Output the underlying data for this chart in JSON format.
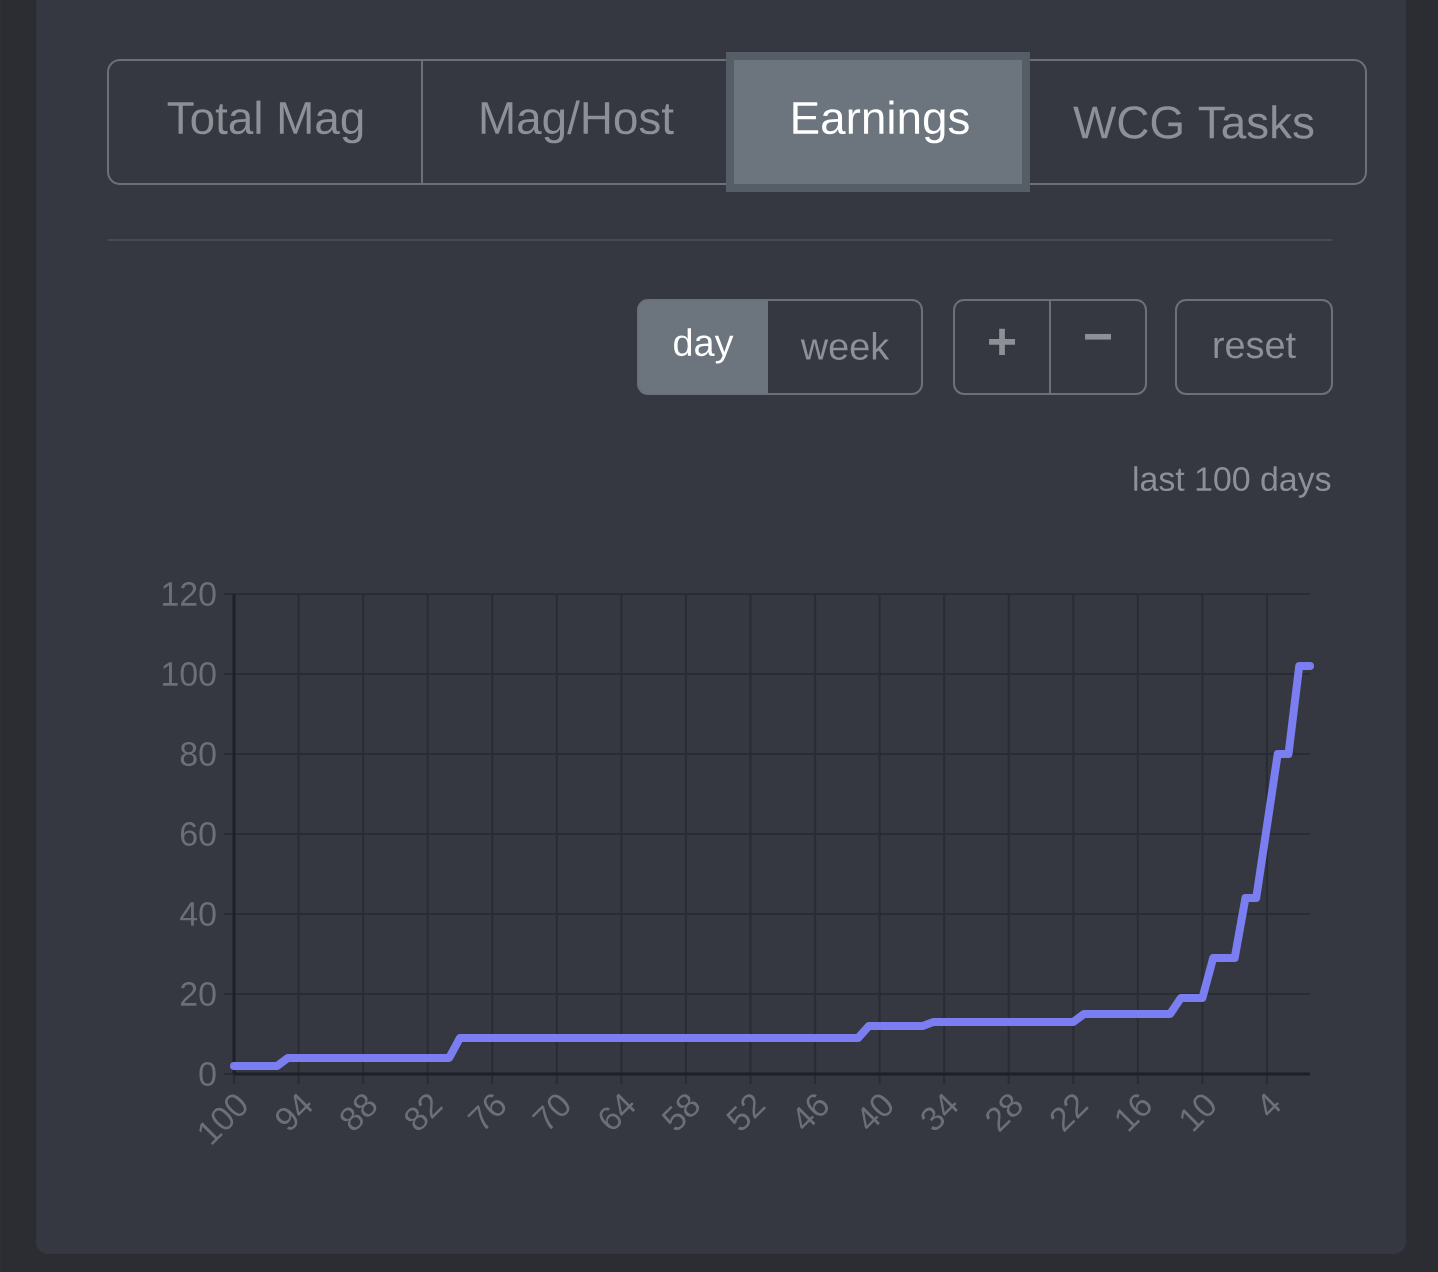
{
  "chart_data": {
    "type": "line",
    "subtitle": "last 100 days",
    "x": [
      100,
      96,
      95,
      80,
      79,
      42,
      41,
      36,
      35,
      22,
      21,
      13,
      12,
      10,
      9,
      7,
      6,
      5,
      3,
      2,
      1,
      0
    ],
    "series": [
      {
        "color": "#7b7ef0",
        "values": [
          2,
          2,
          4,
          4,
          9,
          9,
          12,
          12,
          13,
          13,
          15,
          15,
          19,
          19,
          29,
          29,
          44,
          44,
          80,
          80,
          102,
          102
        ]
      }
    ],
    "xlim": [
      100,
      0
    ],
    "xticks": [
      100,
      94,
      88,
      82,
      76,
      70,
      64,
      58,
      52,
      46,
      40,
      34,
      28,
      22,
      16,
      10,
      4
    ],
    "ylim": [
      0,
      120
    ],
    "yticks": [
      0,
      20,
      40,
      60,
      80,
      100,
      120
    ],
    "grid": true,
    "marker": "none",
    "line_style": "solid",
    "annotations": [
      "Total Mag",
      "Mag/Host",
      "Earnings",
      "WCG Tasks",
      "day",
      "week",
      "+",
      "−",
      "reset"
    ]
  }
}
